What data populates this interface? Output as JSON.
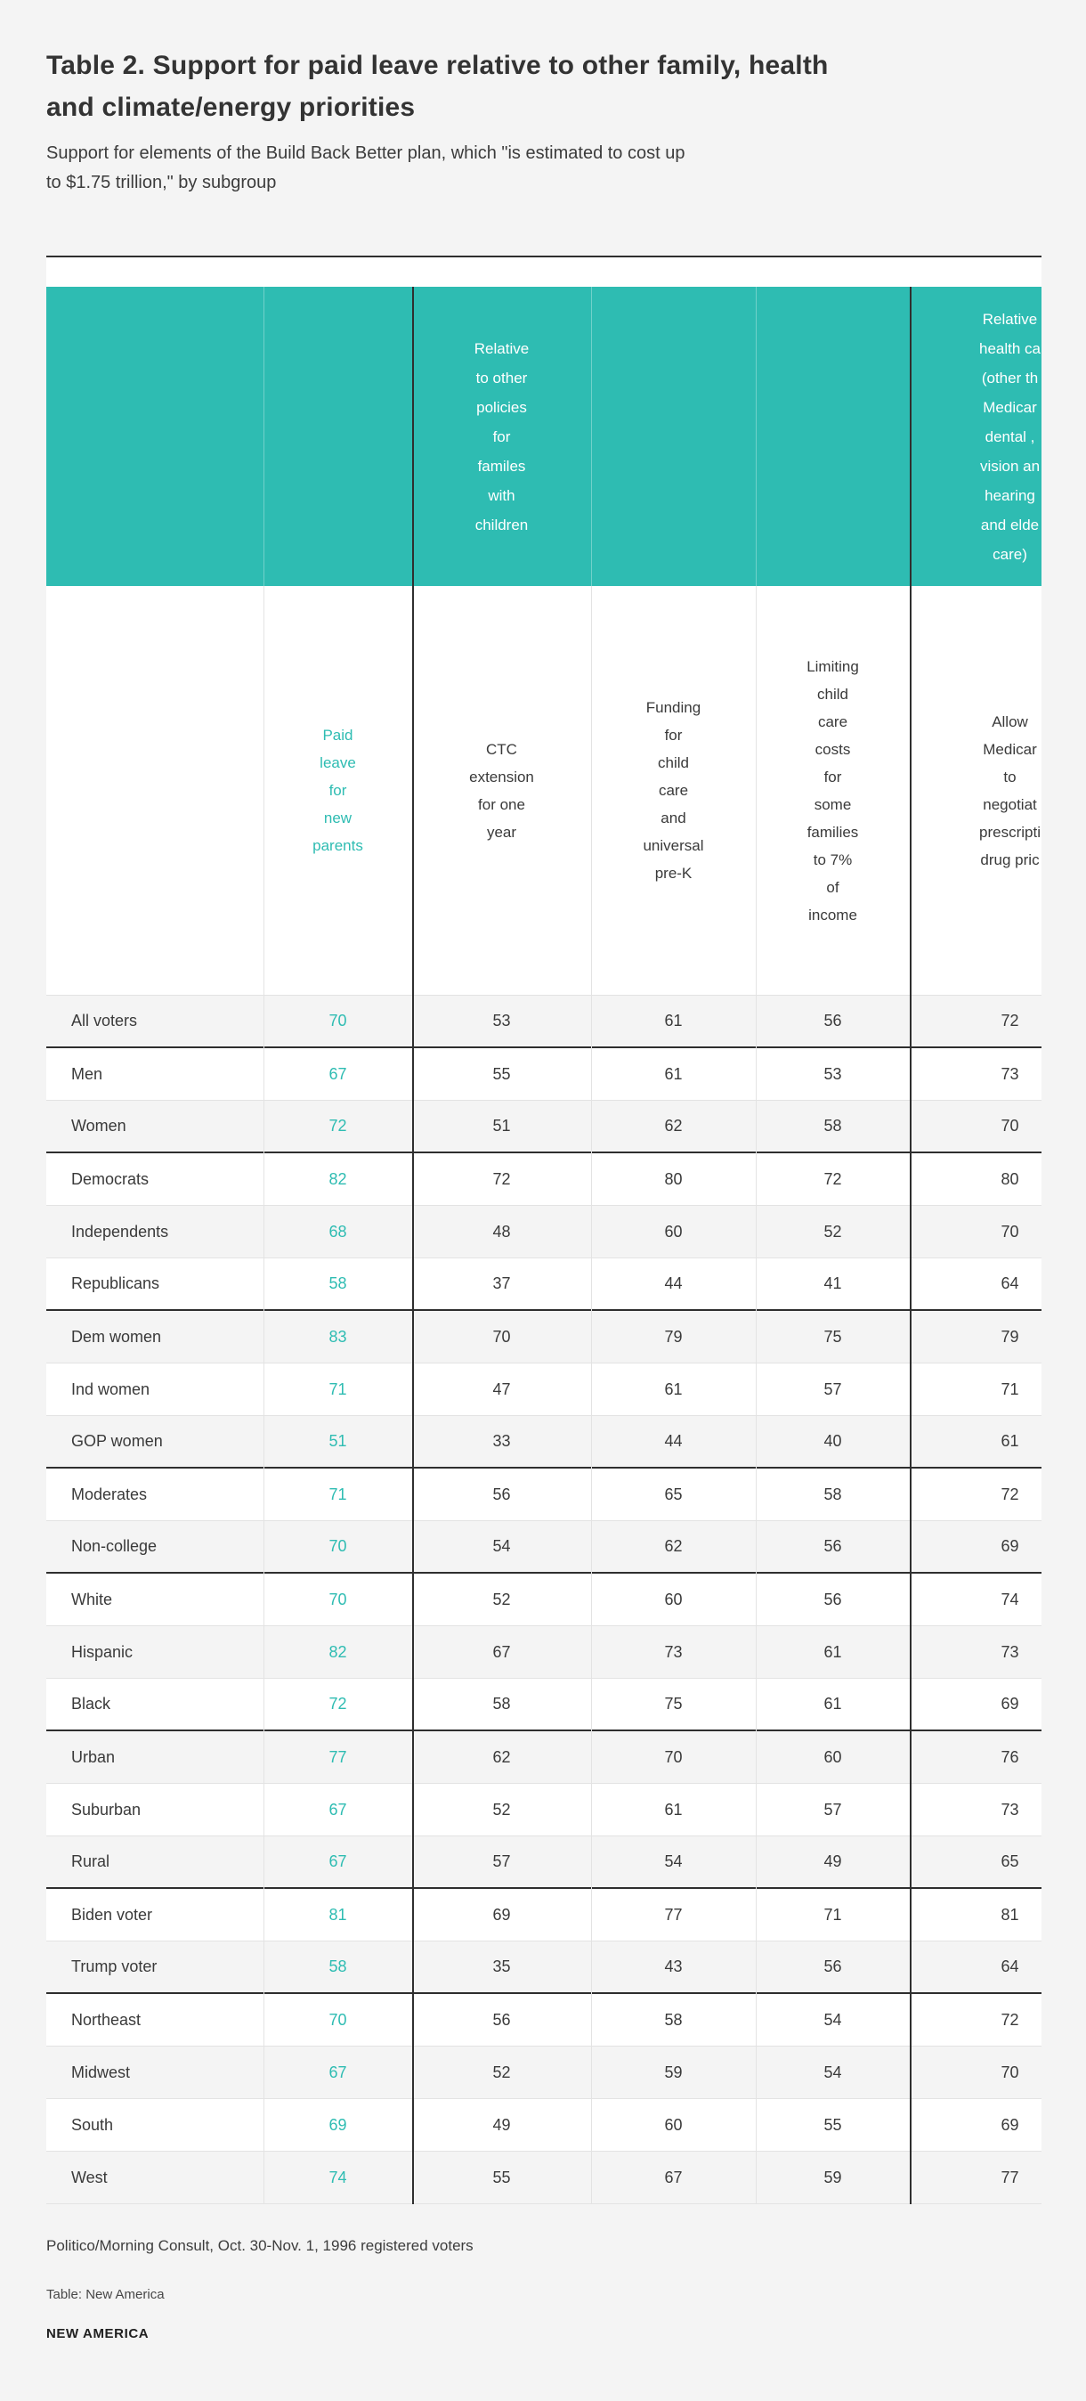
{
  "colors": {
    "accent_teal": "#2ebcb2",
    "page_background": "#f4f4f4",
    "shaded_row": "#f4f4f4",
    "dark_border": "#2e2e2e",
    "text_dark": "#3a3a3a"
  },
  "header": {
    "title": "Table 2. Support for paid leave relative to other family, health\nand climate/energy priorities",
    "subtitle": "Support for elements of the Build Back Better plan, which \"is estimated to cost up\nto $1.75 trillion,\" by subgroup"
  },
  "chart_data": {
    "type": "table",
    "group_headers": [
      {
        "text": "Relative\nto other\npolicies\nfor\nfamiles\nwith\nchildren"
      },
      {
        "text": "Relative\nhealth ca\n(other th\nMedicar\ndental ,\nvision an\nhearing\nand elde\ncare)"
      }
    ],
    "columns": [
      {
        "label": "Paid\nleave\nfor\nnew\nparents",
        "accent": true
      },
      {
        "label": "CTC\nextension\nfor one\nyear",
        "accent": false
      },
      {
        "label": "Funding\nfor\nchild\ncare\nand\nuniversal\npre-K",
        "accent": false
      },
      {
        "label": "Limiting\nchild\ncare\ncosts\nfor\nsome\nfamilies\nto 7%\nof\nincome",
        "accent": false
      },
      {
        "label": "Allow\nMedicar\nto\nnegotiat\nprescripti\ndrug pric",
        "accent": false
      }
    ],
    "rows": [
      {
        "label": "All voters",
        "values": [
          70,
          53,
          61,
          56,
          72
        ]
      },
      {
        "label": "Men",
        "values": [
          67,
          55,
          61,
          53,
          73
        ]
      },
      {
        "label": "Women",
        "values": [
          72,
          51,
          62,
          58,
          70
        ]
      },
      {
        "label": "Democrats",
        "values": [
          82,
          72,
          80,
          72,
          80
        ]
      },
      {
        "label": "Independents",
        "values": [
          68,
          48,
          60,
          52,
          70
        ]
      },
      {
        "label": "Republicans",
        "values": [
          58,
          37,
          44,
          41,
          64
        ]
      },
      {
        "label": "Dem women",
        "values": [
          83,
          70,
          79,
          75,
          79
        ]
      },
      {
        "label": "Ind women",
        "values": [
          71,
          47,
          61,
          57,
          71
        ]
      },
      {
        "label": "GOP women",
        "values": [
          51,
          33,
          44,
          40,
          61
        ]
      },
      {
        "label": "Moderates",
        "values": [
          71,
          56,
          65,
          58,
          72
        ]
      },
      {
        "label": "Non-college",
        "values": [
          70,
          54,
          62,
          56,
          69
        ]
      },
      {
        "label": "White",
        "values": [
          70,
          52,
          60,
          56,
          74
        ]
      },
      {
        "label": "Hispanic",
        "values": [
          82,
          67,
          73,
          61,
          73
        ]
      },
      {
        "label": "Black",
        "values": [
          72,
          58,
          75,
          61,
          69
        ]
      },
      {
        "label": "Urban",
        "values": [
          77,
          62,
          70,
          60,
          76
        ]
      },
      {
        "label": "Suburban",
        "values": [
          67,
          52,
          61,
          57,
          73
        ]
      },
      {
        "label": "Rural",
        "values": [
          67,
          57,
          54,
          49,
          65
        ]
      },
      {
        "label": "Biden voter",
        "values": [
          81,
          69,
          77,
          71,
          81
        ]
      },
      {
        "label": "Trump voter",
        "values": [
          58,
          35,
          43,
          56,
          64
        ]
      },
      {
        "label": "Northeast",
        "values": [
          70,
          56,
          58,
          54,
          72
        ]
      },
      {
        "label": "Midwest",
        "values": [
          67,
          52,
          59,
          54,
          70
        ]
      },
      {
        "label": "South",
        "values": [
          69,
          49,
          60,
          55,
          69
        ]
      },
      {
        "label": "West",
        "values": [
          74,
          55,
          67,
          59,
          77
        ]
      }
    ],
    "thick_border_after_row_indexes": [
      0,
      2,
      5,
      8,
      10,
      13,
      16,
      18
    ]
  },
  "footer": {
    "source": "Politico/Morning Consult, Oct. 30-Nov. 1, 1996 registered voters",
    "credit": "Table: New America",
    "logo": "NEW AMERICA"
  }
}
